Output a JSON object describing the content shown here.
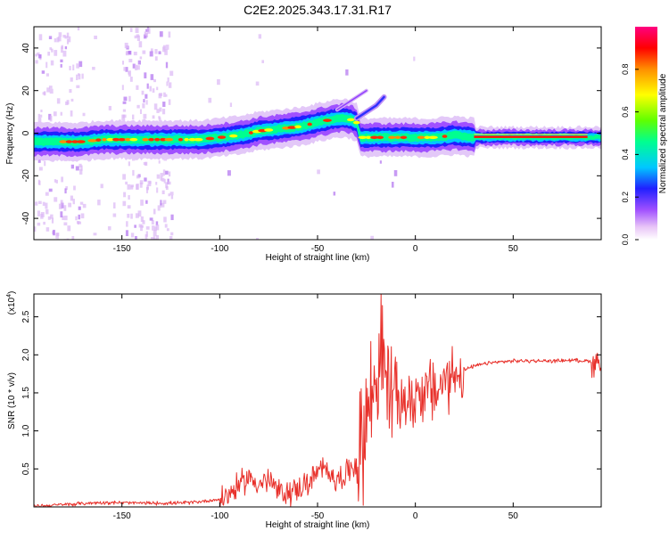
{
  "title": "C2E2.2025.343.17.31.R17",
  "chart_data": [
    {
      "type": "heatmap",
      "xlabel": "Height of straight line (km)",
      "ylabel": "Frequency (Hz)",
      "xlim": [
        -195,
        95
      ],
      "ylim": [
        -50,
        50
      ],
      "xticks": [
        -150,
        -100,
        -50,
        0,
        50
      ],
      "yticks": [
        -40,
        -20,
        0,
        20,
        40
      ],
      "colorbar": {
        "label": "Normalized spectral amplitude",
        "range": [
          0,
          1
        ],
        "ticks": [
          "0.0",
          "0.2",
          "0.4",
          "0.6",
          "0.8"
        ],
        "colors": [
          "#ffffff",
          "#e8c4f7",
          "#a050ff",
          "#2020ff",
          "#00c8ff",
          "#00ff90",
          "#60ff00",
          "#ffff00",
          "#ff9000",
          "#ff0000",
          "#ff0080"
        ]
      },
      "ridge": {
        "x": [
          -192,
          -180,
          -170,
          -160,
          -150,
          -140,
          -130,
          -120,
          -110,
          -100,
          -90,
          -80,
          -70,
          -60,
          -50,
          -45,
          -40,
          -35,
          -32,
          -30,
          -28,
          -25,
          -20,
          -15,
          -10,
          -5,
          0,
          10,
          20,
          30,
          40,
          50,
          60,
          70,
          80,
          92
        ],
        "y": [
          -4,
          -4,
          -4,
          -3,
          -3,
          -3,
          -3,
          -3,
          -3,
          -2,
          -1,
          1,
          2,
          3,
          5,
          6,
          7,
          7,
          6,
          5,
          -2,
          -2,
          -2,
          -2,
          -2,
          -2,
          -2,
          -2,
          -1,
          -2,
          -2,
          -2,
          -2,
          -2,
          -2,
          -2
        ]
      },
      "branch": {
        "x": [
          -30,
          -25,
          -20,
          -16
        ],
        "y": [
          7,
          10,
          13,
          17
        ]
      },
      "upper_streak": {
        "x": [
          -40,
          -35,
          -30,
          -25
        ],
        "y": [
          11,
          14,
          17,
          20
        ]
      }
    },
    {
      "type": "line",
      "xlabel": "Height of straight line (km)",
      "ylabel": "SNR (10 * v/v)",
      "multiplier": "(x10",
      "multiplier_exp": "4",
      "multiplier_close": ")",
      "xlim": [
        -195,
        95
      ],
      "ylim": [
        0,
        2.8
      ],
      "xticks": [
        -150,
        -100,
        -50,
        0,
        50
      ],
      "yticks": [
        "0.5",
        "1.0",
        "1.5",
        "2.0",
        "2.5"
      ],
      "ytick_values": [
        0.5,
        1.0,
        1.5,
        2.0,
        2.5
      ],
      "series": [
        {
          "color": "#e8302a",
          "x": [
            -195,
            -180,
            -160,
            -140,
            -120,
            -110,
            -100,
            -95,
            -90,
            -85,
            -80,
            -75,
            -70,
            -65,
            -60,
            -55,
            -50,
            -45,
            -40,
            -35,
            -30,
            -27,
            -25,
            -22,
            -20,
            -18,
            -16,
            -14,
            -12,
            -10,
            -8,
            -6,
            -4,
            -2,
            0,
            5,
            10,
            15,
            20,
            25,
            30,
            35,
            40,
            45,
            50,
            60,
            70,
            80,
            88,
            92,
            95
          ],
          "y": [
            0.01,
            0.03,
            0.06,
            0.05,
            0.05,
            0.07,
            0.1,
            0.18,
            0.28,
            0.4,
            0.3,
            0.35,
            0.2,
            0.18,
            0.25,
            0.3,
            0.45,
            0.5,
            0.35,
            0.45,
            0.6,
            0.9,
            1.2,
            1.5,
            1.7,
            2.2,
            1.8,
            1.5,
            1.6,
            1.4,
            1.3,
            1.45,
            1.4,
            1.3,
            1.5,
            1.55,
            1.5,
            1.65,
            1.75,
            1.8,
            1.85,
            1.88,
            1.9,
            1.91,
            1.92,
            1.92,
            1.92,
            1.93,
            1.92,
            1.9,
            1.95
          ]
        }
      ]
    }
  ]
}
